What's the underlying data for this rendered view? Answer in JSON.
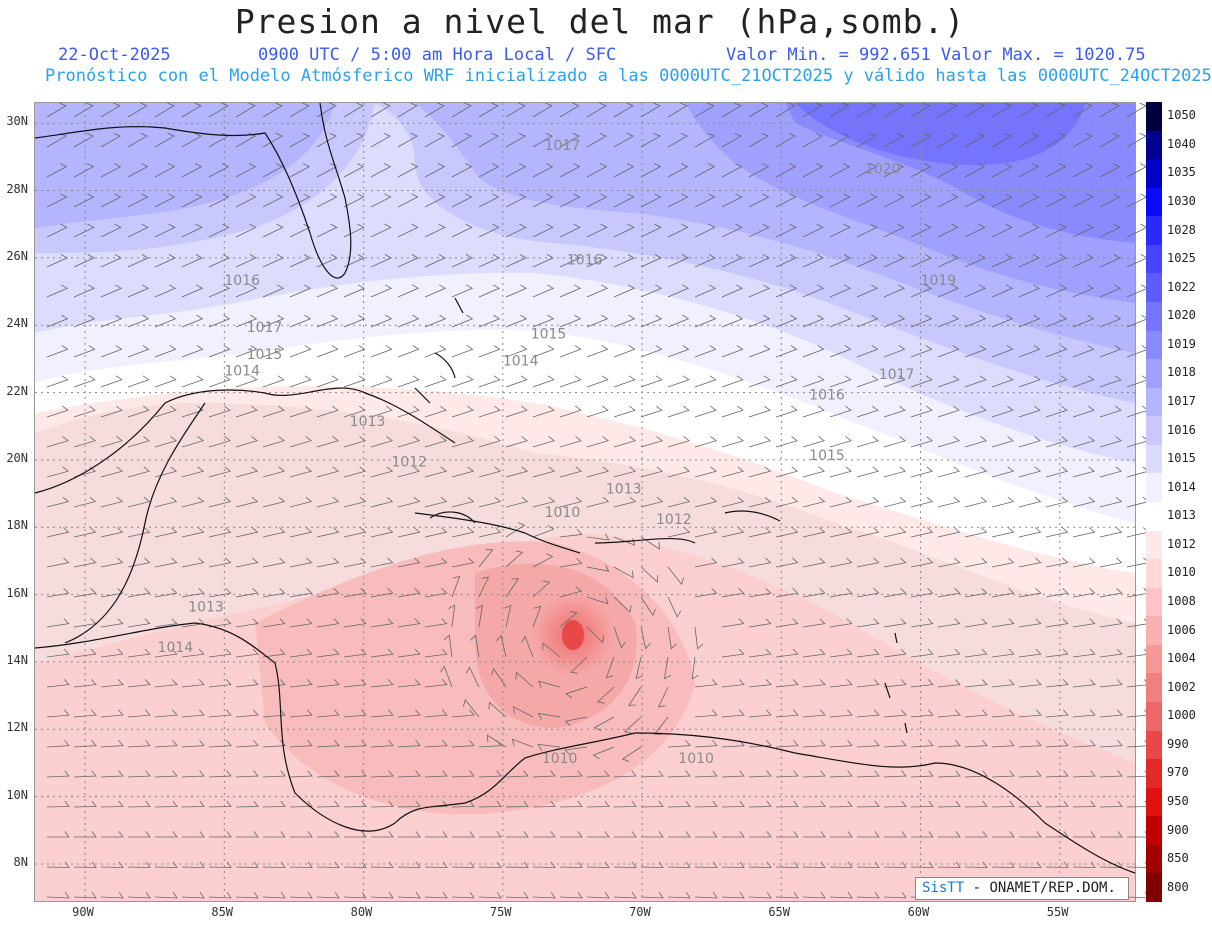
{
  "title": "Presion a nivel del mar (hPa,somb.)",
  "header": {
    "date": "22-Oct-2025",
    "time": "0900 UTC / 5:00 am Hora Local / SFC",
    "minmax": "Valor Min. = 992.651  Valor Max. = 1020.75",
    "model": "Pronóstico con el Modelo Atmósferico WRF inicializado a las 0000UTC_21OCT2025 y válido hasta las  0000UTC_24OCT2025"
  },
  "axes": {
    "lat_labels": [
      "30N",
      "28N",
      "26N",
      "24N",
      "22N",
      "20N",
      "18N",
      "16N",
      "14N",
      "12N",
      "10N",
      "8N"
    ],
    "lat_values": [
      30,
      28,
      26,
      24,
      22,
      20,
      18,
      16,
      14,
      12,
      10,
      8
    ],
    "lon_labels": [
      "90W",
      "85W",
      "80W",
      "75W",
      "70W",
      "65W",
      "60W",
      "55W"
    ],
    "lon_values": [
      -90,
      -85,
      -80,
      -75,
      -70,
      -65,
      -60,
      -55
    ],
    "lon_range": [
      -91.8,
      -52.3
    ],
    "lat_range": [
      6.9,
      30.6
    ]
  },
  "contour_labels": [
    {
      "text": "1017",
      "lon": -84.2,
      "lat": 23.8
    },
    {
      "text": "1017",
      "lon": -73.5,
      "lat": 29.2
    },
    {
      "text": "1020",
      "lon": -62.0,
      "lat": 28.5
    },
    {
      "text": "1019",
      "lon": -60.0,
      "lat": 25.2
    },
    {
      "text": "1017",
      "lon": -61.5,
      "lat": 22.4
    },
    {
      "text": "1016",
      "lon": -64.0,
      "lat": 21.8
    },
    {
      "text": "1016",
      "lon": -85.0,
      "lat": 25.2
    },
    {
      "text": "1016",
      "lon": -72.7,
      "lat": 25.8
    },
    {
      "text": "1015",
      "lon": -74.0,
      "lat": 23.6
    },
    {
      "text": "1015",
      "lon": -64.0,
      "lat": 20.0
    },
    {
      "text": "1014",
      "lon": -75.0,
      "lat": 22.8
    },
    {
      "text": "1014",
      "lon": -85.0,
      "lat": 22.5
    },
    {
      "text": "1015",
      "lon": -84.2,
      "lat": 23.0
    },
    {
      "text": "1013",
      "lon": -80.5,
      "lat": 21.0
    },
    {
      "text": "1012",
      "lon": -79.0,
      "lat": 19.8
    },
    {
      "text": "1013",
      "lon": -71.3,
      "lat": 19.0
    },
    {
      "text": "1010",
      "lon": -73.5,
      "lat": 18.3
    },
    {
      "text": "1012",
      "lon": -69.5,
      "lat": 18.1
    },
    {
      "text": "1013",
      "lon": -86.3,
      "lat": 15.5
    },
    {
      "text": "1014",
      "lon": -87.4,
      "lat": 14.3
    },
    {
      "text": "1010",
      "lon": -68.7,
      "lat": 11.0
    },
    {
      "text": "1010",
      "lon": -73.6,
      "lat": 11.0
    }
  ],
  "colorbar": {
    "levels": [
      "1050",
      "1040",
      "1035",
      "1030",
      "1028",
      "1025",
      "1022",
      "1020",
      "1019",
      "1018",
      "1017",
      "1016",
      "1015",
      "1014",
      "1013",
      "1012",
      "1010",
      "1008",
      "1006",
      "1004",
      "1002",
      "1000",
      "990",
      "970",
      "950",
      "900",
      "850",
      "800"
    ],
    "colors": [
      "#000040",
      "#000090",
      "#0000c8",
      "#0a0aff",
      "#2a2aff",
      "#4444ff",
      "#5c5cff",
      "#7474ff",
      "#8a8aff",
      "#a0a0ff",
      "#b4b4ff",
      "#c8c8ff",
      "#dcdcff",
      "#f0f0ff",
      "#ffffff",
      "#ffe8e8",
      "#ffd8d8",
      "#fcc4c4",
      "#f8b0b0",
      "#f49898",
      "#f08080",
      "#ec6868",
      "#e84848",
      "#e42828",
      "#e01010",
      "#c00000",
      "#a00000",
      "#800000"
    ]
  },
  "low_center": {
    "lon": -72.5,
    "lat": 14.6
  },
  "credit": {
    "brand": "SisTT",
    "text": "- ONAMET/REP.DOM."
  }
}
